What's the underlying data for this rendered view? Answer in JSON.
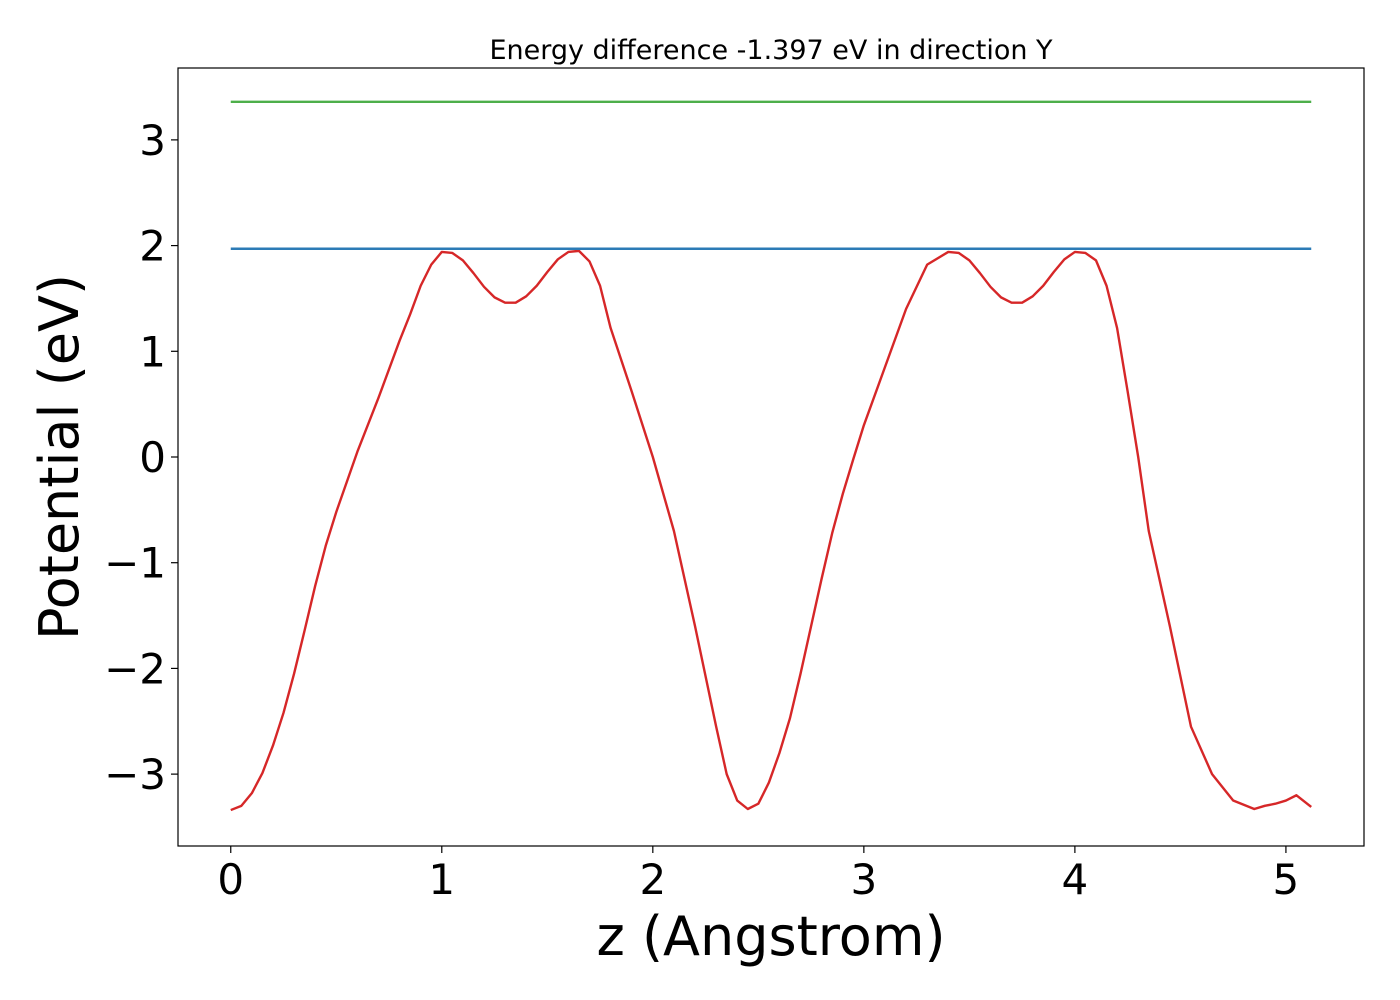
{
  "chart_data": {
    "type": "line",
    "title": "Energy difference -1.397 eV in direction Y",
    "xlabel": "z (Angstrom)",
    "ylabel": "Potential (eV)",
    "xlim": [
      -0.25,
      5.37
    ],
    "ylim": [
      -3.68,
      3.68
    ],
    "xticks": [
      0,
      1,
      2,
      3,
      4,
      5
    ],
    "xtick_labels": [
      "0",
      "1",
      "2",
      "3",
      "4",
      "5"
    ],
    "yticks": [
      -3,
      -2,
      -1,
      0,
      1,
      2,
      3
    ],
    "ytick_labels": [
      "−3",
      "−2",
      "−1",
      "0",
      "1",
      "2",
      "3"
    ],
    "grid": false,
    "series": [
      {
        "color": "#d62728",
        "x": [
          0,
          0.05,
          0.1,
          0.15,
          0.2,
          0.25,
          0.3,
          0.35,
          0.4,
          0.45,
          0.5,
          0.6,
          0.7,
          0.8,
          0.85,
          0.9,
          0.95,
          1.0,
          1.05,
          1.1,
          1.15,
          1.2,
          1.25,
          1.3,
          1.35,
          1.4,
          1.45,
          1.5,
          1.55,
          1.6,
          1.65,
          1.7,
          1.75,
          1.8,
          1.9,
          2.0,
          2.1,
          2.2,
          2.3,
          2.35,
          2.4,
          2.45,
          2.5,
          2.55,
          2.6,
          2.65,
          2.7,
          2.75,
          2.8,
          2.85,
          2.9,
          2.95,
          3.0,
          3.1,
          3.2,
          3.3,
          3.4,
          3.45,
          3.5,
          3.55,
          3.6,
          3.65,
          3.7,
          3.75,
          3.8,
          3.85,
          3.9,
          3.95,
          4.0,
          4.05,
          4.1,
          4.15,
          4.2,
          4.25,
          4.3,
          4.35,
          4.45,
          4.55,
          4.65,
          4.75,
          4.85,
          4.9,
          4.95,
          5.0,
          5.05,
          5.12
        ],
        "values": [
          -3.34,
          -3.3,
          -3.18,
          -2.99,
          -2.73,
          -2.42,
          -2.05,
          -1.64,
          -1.22,
          -0.84,
          -0.52,
          0.05,
          0.56,
          1.1,
          1.35,
          1.62,
          1.82,
          1.94,
          1.93,
          1.86,
          1.74,
          1.61,
          1.51,
          1.46,
          1.46,
          1.52,
          1.62,
          1.75,
          1.87,
          1.94,
          1.95,
          1.85,
          1.62,
          1.22,
          0.62,
          -0.0,
          -0.7,
          -1.6,
          -2.55,
          -3.0,
          -3.25,
          -3.33,
          -3.28,
          -3.08,
          -2.8,
          -2.47,
          -2.05,
          -1.6,
          -1.15,
          -0.72,
          -0.35,
          -0.02,
          0.3,
          0.85,
          1.4,
          1.82,
          1.94,
          1.93,
          1.86,
          1.74,
          1.61,
          1.51,
          1.46,
          1.46,
          1.52,
          1.62,
          1.75,
          1.87,
          1.94,
          1.93,
          1.86,
          1.62,
          1.22,
          0.62,
          0.0,
          -0.7,
          -1.6,
          -2.55,
          -3.0,
          -3.25,
          -3.33,
          -3.3,
          -3.28,
          -3.25,
          -3.2,
          -3.31
        ]
      },
      {
        "color": "#2c7bb6",
        "x": [
          0,
          5.12
        ],
        "values": [
          1.97,
          1.97
        ]
      },
      {
        "color": "#4daf4a",
        "x": [
          0,
          5.12
        ],
        "values": [
          3.36,
          3.36
        ]
      }
    ]
  }
}
